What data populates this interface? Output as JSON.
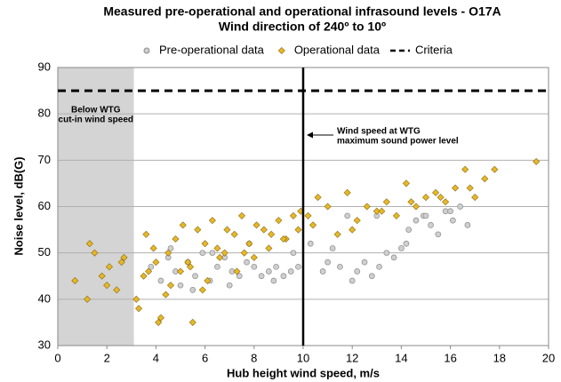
{
  "chart_data": {
    "type": "scatter",
    "title": "Measured pre-operational and operational infrasound levels - O17A",
    "subtitle": "Wind direction of 240º to 10º",
    "x_label": "Hub height wind speed, m/s",
    "y_label": "Noise level, dB(G)",
    "xlim": [
      0,
      20
    ],
    "xticks": [
      0,
      2,
      4,
      6,
      8,
      10,
      12,
      14,
      16,
      18,
      20
    ],
    "ylim": [
      30,
      90
    ],
    "yticks": [
      30,
      40,
      50,
      60,
      70,
      80,
      90
    ],
    "grid": true,
    "shaded_xlim": [
      0,
      3.1
    ],
    "reference_x": 10,
    "criteria": {
      "name": "Criteria",
      "value": 85,
      "color": "#000000"
    },
    "annotations": [
      {
        "text": [
          "Below WTG",
          "cut-in wind speed"
        ]
      },
      {
        "text": [
          "Wind speed at WTG",
          "maximum sound power level"
        ]
      }
    ],
    "series": [
      {
        "name": "Pre-operational data",
        "color": "#cfcfcf",
        "marker": "circle",
        "x": [
          3.8,
          4.2,
          4.5,
          4.8,
          5.0,
          5.3,
          5.6,
          5.9,
          6.2,
          6.5,
          6.8,
          7.1,
          7.4,
          7.7,
          8.0,
          8.3,
          8.6,
          8.9,
          9.2,
          9.5,
          9.8,
          4.6,
          5.5,
          6.3,
          7.0,
          7.8,
          8.8,
          9.6,
          10.3,
          10.8,
          11.2,
          11.5,
          11.8,
          12.2,
          12.5,
          12.8,
          13.1,
          13.4,
          13.7,
          14.0,
          14.3,
          14.6,
          14.9,
          15.2,
          15.5,
          15.8,
          16.1,
          16.4,
          16.7,
          12.0,
          13.0,
          14.2,
          15.0,
          16.0,
          11.0
        ],
        "values": [
          47,
          44,
          49,
          46,
          43,
          48,
          45,
          50,
          44,
          47,
          49,
          46,
          45,
          48,
          47,
          45,
          46,
          47,
          45,
          46,
          47,
          51,
          42,
          50,
          43,
          52,
          44,
          50,
          52,
          46,
          51,
          47,
          58,
          46,
          48,
          45,
          47,
          50,
          49,
          51,
          55,
          57,
          58,
          56,
          54,
          59,
          57,
          60,
          56,
          44,
          58,
          52,
          58,
          59,
          48
        ]
      },
      {
        "name": "Operational data",
        "color": "#e6b828",
        "marker": "diamond",
        "x": [
          0.7,
          1.2,
          1.5,
          1.8,
          2.1,
          2.4,
          2.7,
          1.3,
          2.0,
          2.6,
          3.3,
          3.6,
          3.9,
          4.2,
          4.5,
          4.8,
          5.1,
          5.4,
          5.7,
          6.0,
          6.3,
          6.6,
          6.9,
          7.2,
          7.5,
          7.8,
          8.1,
          8.4,
          8.7,
          9.0,
          9.3,
          9.6,
          9.9,
          3.5,
          4.0,
          4.4,
          5.0,
          5.5,
          6.1,
          6.8,
          7.3,
          8.0,
          8.6,
          9.2,
          9.8,
          4.1,
          5.9,
          10.2,
          10.6,
          11.0,
          11.4,
          11.8,
          12.2,
          12.6,
          13.0,
          13.4,
          13.8,
          14.2,
          14.6,
          15.0,
          15.4,
          15.8,
          16.2,
          16.6,
          17.0,
          17.4,
          17.8,
          19.5,
          10.4,
          12.0,
          13.2,
          14.4,
          15.6,
          16.8,
          3.2,
          3.7,
          4.6,
          5.3,
          6.5,
          7.6
        ],
        "values": [
          44,
          40,
          50,
          45,
          47,
          42,
          49,
          52,
          43,
          48,
          38,
          54,
          51,
          36,
          50,
          53,
          56,
          47,
          55,
          52,
          57,
          49,
          55,
          54,
          58,
          52,
          56,
          55,
          54,
          57,
          53,
          58,
          59,
          45,
          48,
          41,
          46,
          35,
          44,
          50,
          46,
          49,
          51,
          53,
          55,
          35,
          42,
          58,
          62,
          60,
          54,
          63,
          57,
          60,
          59,
          61,
          58,
          65,
          60,
          62,
          63,
          61,
          64,
          68,
          62,
          66,
          68,
          69.7,
          56,
          55,
          59,
          61,
          62,
          64,
          40,
          46,
          43,
          48,
          51,
          50
        ]
      }
    ]
  }
}
